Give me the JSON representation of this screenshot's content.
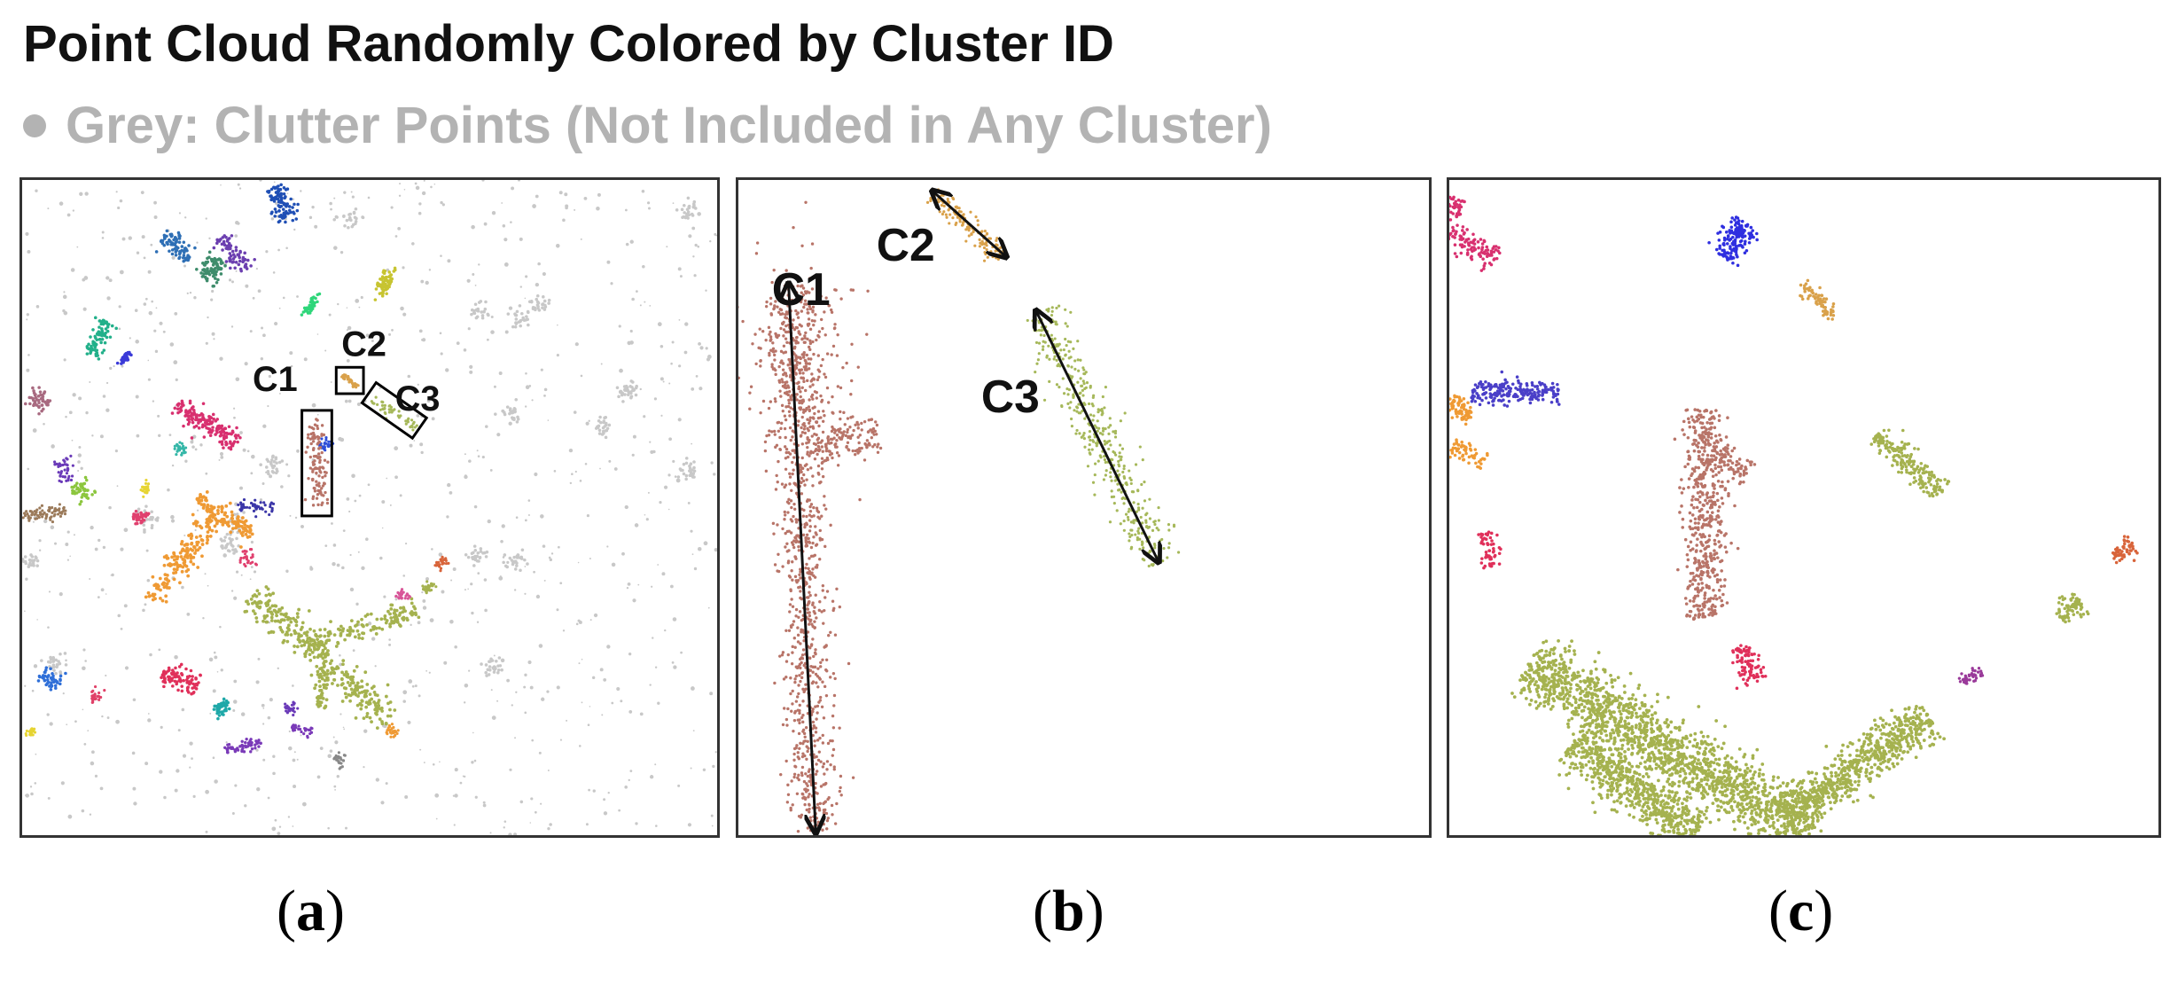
{
  "title": "Point Cloud Randomly Colored by Cluster ID",
  "legend": {
    "dot_color": "#b3b3b3",
    "text": "Grey: Clutter Points (Not Included in Any Cluster)"
  },
  "panels": [
    {
      "id": "a",
      "caption_letter": "a",
      "labels": [
        "C1",
        "C2",
        "C3"
      ]
    },
    {
      "id": "b",
      "caption_letter": "b",
      "labels": [
        "C1",
        "C2",
        "C3"
      ]
    },
    {
      "id": "c",
      "caption_letter": "c"
    }
  ],
  "colors": {
    "clutter": "#c8c8c8",
    "c1": "#b87468",
    "c2": "#d9a14a",
    "c3": "#a6b85a"
  }
}
